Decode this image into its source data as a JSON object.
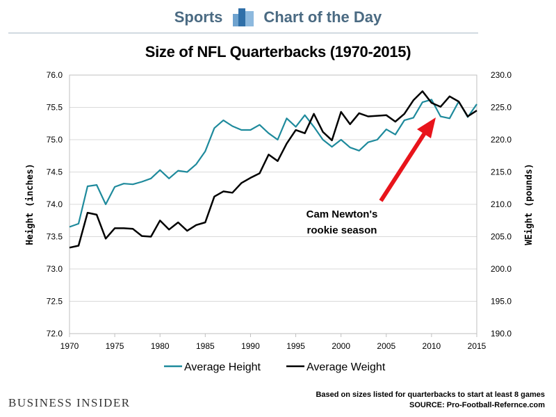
{
  "header": {
    "sports": "Sports",
    "chart_of_day": "Chart of the Day",
    "logo_color": "#5b8fb9",
    "text_color": "#4a6a82"
  },
  "title": "Size of NFL Quarterbacks (1970-2015)",
  "footer": {
    "logo": "BUSINESS INSIDER",
    "note": "Based on sizes listed for quarterbacks to start at least 8 games",
    "source": "SOURCE: Pro-Football-Refernce.com"
  },
  "annotation": {
    "line1": "Cam Newton's",
    "line2": "rookie season",
    "arrow_color": "#e8141b"
  },
  "chart_data": {
    "type": "line",
    "title": "Size of NFL Quarterbacks (1970-2015)",
    "xlabel": "",
    "ylabel": "Height (inches)",
    "y2label": "WEight (pounds)",
    "xlim": [
      1970,
      2015
    ],
    "ylim": [
      72.0,
      76.0
    ],
    "y2lim": [
      190.0,
      230.0
    ],
    "x_ticks": [
      "1970",
      "1975",
      "1980",
      "1985",
      "1990",
      "1995",
      "2000",
      "2005",
      "2010",
      "2015"
    ],
    "y_ticks": [
      "72.0",
      "72.5",
      "73.0",
      "73.5",
      "74.0",
      "74.5",
      "75.0",
      "75.5",
      "76.0"
    ],
    "y2_ticks": [
      "190.0",
      "195.0",
      "200.0",
      "205.0",
      "210.0",
      "215.0",
      "220.0",
      "225.0",
      "230.0"
    ],
    "grid": true,
    "legend_position": "bottom",
    "x": [
      1970,
      1971,
      1972,
      1973,
      1974,
      1975,
      1976,
      1977,
      1978,
      1979,
      1980,
      1981,
      1982,
      1983,
      1984,
      1985,
      1986,
      1987,
      1988,
      1989,
      1990,
      1991,
      1992,
      1993,
      1994,
      1995,
      1996,
      1997,
      1998,
      1999,
      2000,
      2001,
      2002,
      2003,
      2004,
      2005,
      2006,
      2007,
      2008,
      2009,
      2010,
      2011,
      2012,
      2013,
      2014,
      2015
    ],
    "series": [
      {
        "name": "Average Height",
        "axis": "left",
        "color": "#1e8a9c",
        "values": [
          73.65,
          73.7,
          74.28,
          74.3,
          74.0,
          74.27,
          74.32,
          74.31,
          74.35,
          74.4,
          74.53,
          74.4,
          74.52,
          74.5,
          74.62,
          74.82,
          75.18,
          75.3,
          75.21,
          75.15,
          75.15,
          75.23,
          75.1,
          75.0,
          75.33,
          75.2,
          75.38,
          75.2,
          75.0,
          74.89,
          75.0,
          74.88,
          74.83,
          74.96,
          75.0,
          75.16,
          75.08,
          75.3,
          75.34,
          75.58,
          75.62,
          75.36,
          75.33,
          75.59,
          75.35,
          75.55
        ]
      },
      {
        "name": "Average Weight",
        "axis": "right",
        "color": "#000000",
        "values": [
          203.3,
          203.6,
          208.7,
          208.4,
          204.7,
          206.3,
          206.3,
          206.2,
          205.1,
          205.0,
          207.5,
          206.1,
          207.2,
          205.9,
          206.8,
          207.2,
          211.2,
          212.0,
          211.8,
          213.3,
          214.1,
          214.8,
          217.7,
          216.7,
          219.4,
          221.5,
          221.0,
          224.0,
          221.2,
          219.9,
          224.3,
          222.4,
          224.1,
          223.6,
          223.7,
          223.8,
          222.8,
          224.0,
          226.1,
          227.5,
          225.7,
          225.1,
          226.7,
          225.9,
          223.6,
          224.5
        ]
      }
    ]
  }
}
